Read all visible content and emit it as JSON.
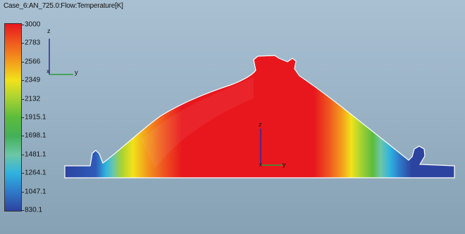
{
  "title": "Case_6:AN_725.0:Flow:Temperature[K]",
  "legend": {
    "values": [
      "3000",
      "2783",
      "2566",
      "2349",
      "2132",
      "1915.1",
      "1698.1",
      "1481.1",
      "1264.1",
      "1047.1",
      "830.1"
    ],
    "colors": [
      "#e8171e",
      "#ef5a1f",
      "#f39a1c",
      "#f2e21a",
      "#a6d233",
      "#5cbc3c",
      "#43b058",
      "#6cc7a6",
      "#2fb2e0",
      "#2f78c8",
      "#2d43a0"
    ]
  },
  "triad_corner": {
    "z_label": "z",
    "x_label": "x",
    "y_label": "y"
  },
  "triad_center": {
    "z_label": "z",
    "x_label": "x",
    "y_label": "y"
  },
  "colors": {
    "axis_z": "#2a2a9c",
    "axis_y": "#2c9e36",
    "outline": "#ffffff"
  }
}
